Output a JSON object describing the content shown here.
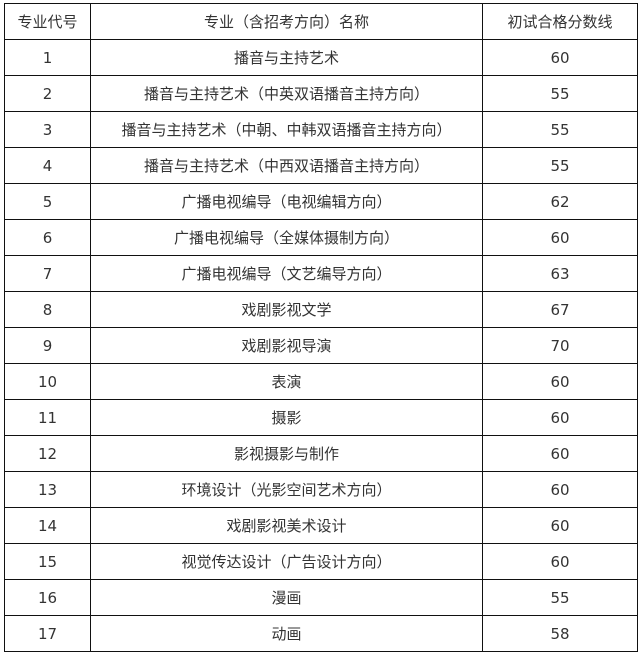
{
  "headers": [
    "专业代号",
    "专业（含招考方向）名称",
    "初试合格分数线"
  ],
  "rows": [
    [
      "1",
      "播音与主持艺术",
      "60"
    ],
    [
      "2",
      "播音与主持艺术（中英双语播音主持方向）",
      "55"
    ],
    [
      "3",
      "播音与主持艺术（中朝、中韩双语播音主持方向）",
      "55"
    ],
    [
      "4",
      "播音与主持艺术（中西双语播音主持方向）",
      "55"
    ],
    [
      "5",
      "广播电视编导（电视编辑方向）",
      "62"
    ],
    [
      "6",
      "广播电视编导（全媒体摄制方向）",
      "60"
    ],
    [
      "7",
      "广播电视编导（文艺编导方向）",
      "63"
    ],
    [
      "8",
      "戏剧影视文学",
      "67"
    ],
    [
      "9",
      "戏剧影视导演",
      "70"
    ],
    [
      "10",
      "表演",
      "60"
    ],
    [
      "11",
      "摄影",
      "60"
    ],
    [
      "12",
      "影视摄影与制作",
      "60"
    ],
    [
      "13",
      "环境设计（光影空间艺术方向）",
      "60"
    ],
    [
      "14",
      "戏剧影视美术设计",
      "60"
    ],
    [
      "15",
      "视觉传达设计（广告设计方向）",
      "60"
    ],
    [
      "16",
      "漫画",
      "55"
    ],
    [
      "17",
      "动画",
      "58"
    ]
  ]
}
